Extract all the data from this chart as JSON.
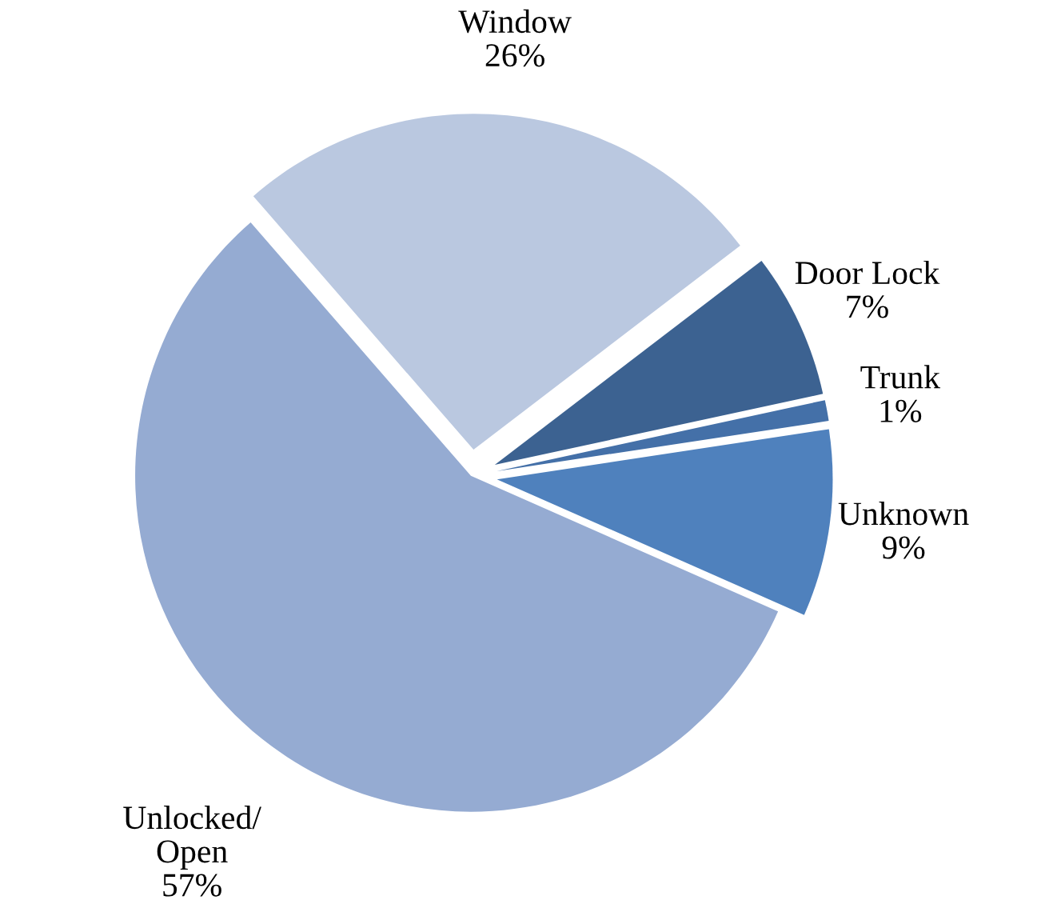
{
  "chart_data": {
    "type": "pie",
    "categories": [
      "Window",
      "Door Lock",
      "Trunk",
      "Unknown",
      "Unlocked/\nOpen"
    ],
    "values": [
      26,
      7,
      1,
      9,
      57
    ],
    "value_labels": [
      "26%",
      "7%",
      "1%",
      "9%",
      "57%"
    ],
    "colors": [
      "#bac8e0",
      "#3c6291",
      "#4470a8",
      "#4f81bd",
      "#95abd2"
    ]
  }
}
